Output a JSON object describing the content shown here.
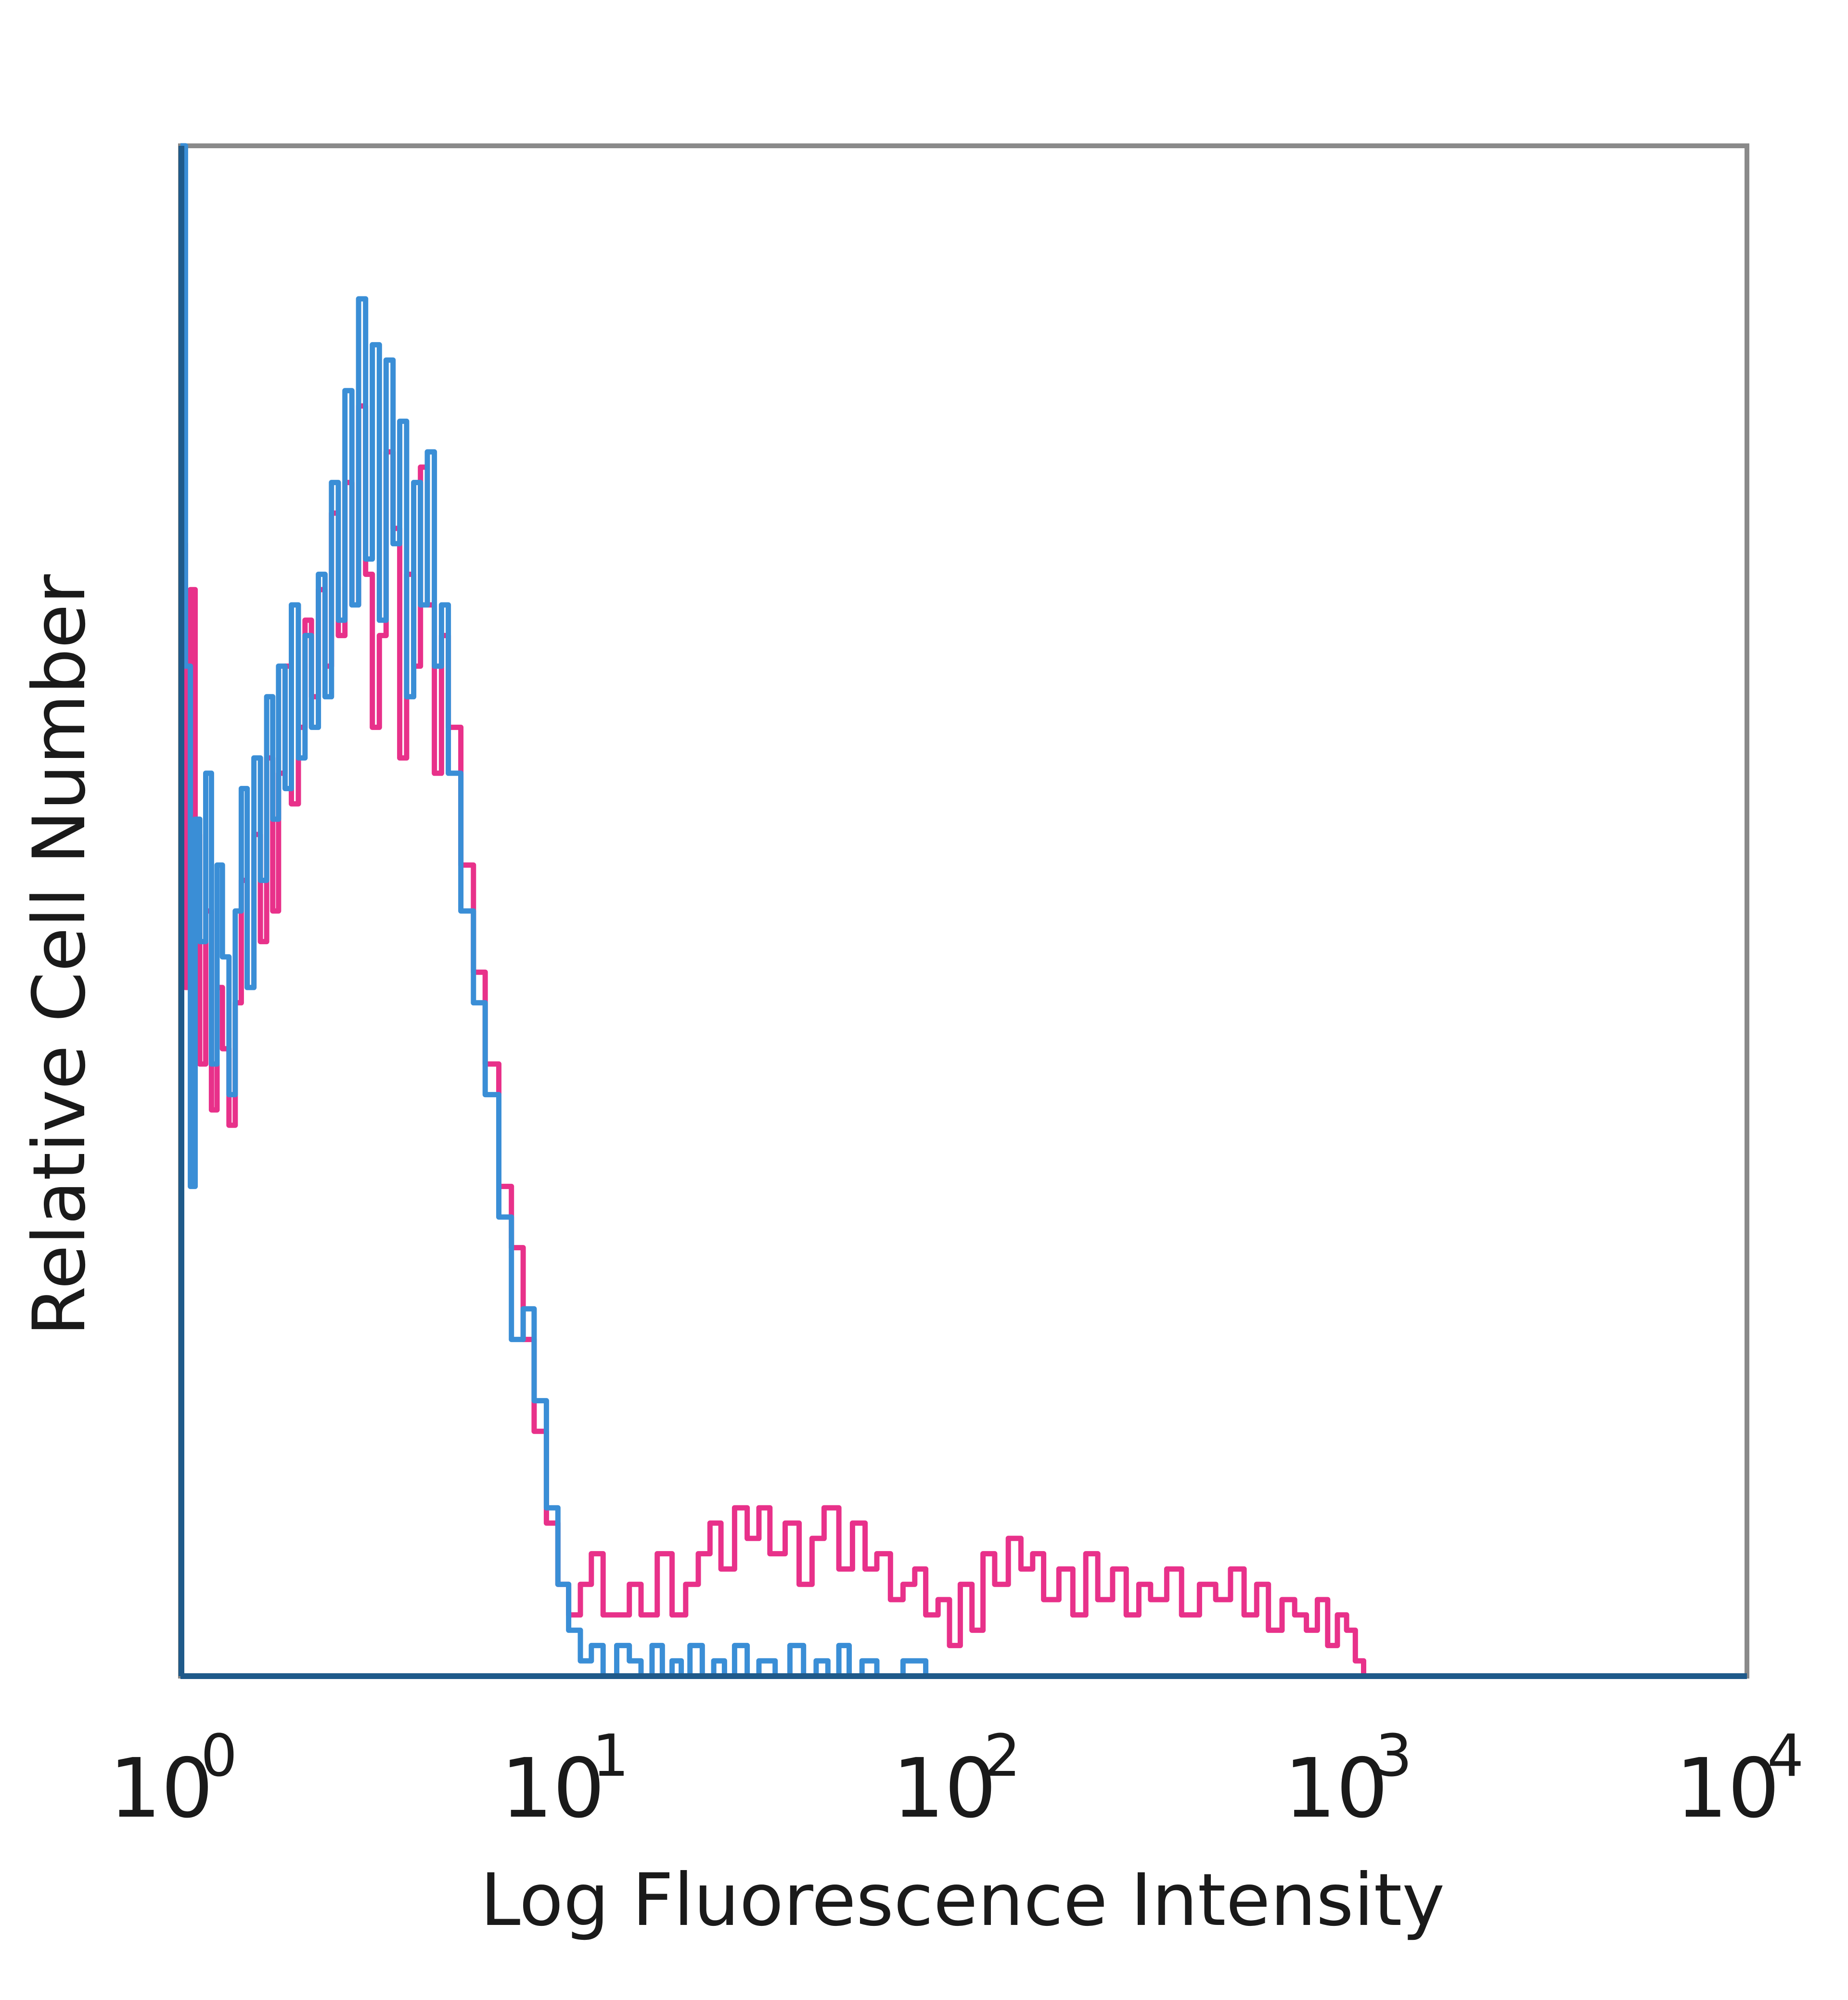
{
  "chart_data": {
    "type": "line",
    "xlabel": "Log Fluorescence Intensity",
    "ylabel": "Relative Cell Number",
    "x_scale": "log",
    "xlim": [
      1,
      10000
    ],
    "ylim": [
      0,
      100
    ],
    "grid": false,
    "x_ticks": [
      {
        "value": 1,
        "base": "10",
        "exp": "0"
      },
      {
        "value": 10,
        "base": "10",
        "exp": "1"
      },
      {
        "value": 100,
        "base": "10",
        "exp": "2"
      },
      {
        "value": 1000,
        "base": "10",
        "exp": "3"
      },
      {
        "value": 10000,
        "base": "10",
        "exp": "4"
      }
    ],
    "series": [
      {
        "color": "#e8318a",
        "x": [
          1.0,
          1.03,
          1.06,
          1.09,
          1.12,
          1.16,
          1.2,
          1.24,
          1.28,
          1.33,
          1.38,
          1.43,
          1.48,
          1.54,
          1.6,
          1.66,
          1.72,
          1.78,
          1.85,
          1.92,
          2.0,
          2.08,
          2.16,
          2.25,
          2.34,
          2.43,
          2.53,
          2.63,
          2.74,
          2.85,
          2.97,
          3.09,
          3.22,
          3.35,
          3.49,
          3.63,
          3.78,
          3.94,
          4.1,
          4.27,
          4.45,
          4.64,
          4.83,
          5.2,
          5.6,
          6.0,
          6.5,
          7.0,
          7.5,
          8.0,
          8.6,
          9.2,
          9.8,
          10.5,
          11.2,
          12.0,
          13.0,
          14.0,
          15.0,
          16.5,
          18.0,
          19.5,
          21.0,
          22.5,
          24.0,
          26.0,
          28.0,
          30.0,
          32.0,
          35.0,
          38.0,
          41.0,
          44.0,
          48.0,
          52.0,
          56.0,
          60.0,
          65.0,
          70.0,
          75.0,
          80.0,
          86.0,
          92.0,
          98.0,
          105.0,
          112.0,
          120.0,
          130.0,
          140.0,
          150.0,
          160.0,
          175.0,
          190.0,
          205.0,
          220.0,
          240.0,
          260.0,
          280.0,
          300.0,
          330.0,
          360.0,
          400.0,
          440.0,
          480.0,
          520.0,
          560.0,
          600.0,
          650.0,
          700.0,
          750.0,
          800.0,
          850.0,
          900.0,
          950.0,
          1000.0,
          1050.0
        ],
        "y": [
          74,
          45,
          71,
          55,
          40,
          50,
          37,
          45,
          41,
          36,
          44,
          52,
          45,
          55,
          48,
          60,
          50,
          59,
          66,
          57,
          62,
          69,
          64,
          71,
          66,
          76,
          68,
          78,
          70,
          83,
          72,
          62,
          68,
          80,
          75,
          60,
          72,
          66,
          79,
          70,
          59,
          68,
          62,
          53,
          46,
          40,
          32,
          28,
          22,
          16,
          10,
          6,
          4,
          6,
          8,
          4,
          4,
          6,
          4,
          8,
          4,
          6,
          8,
          10,
          7,
          11,
          9,
          11,
          8,
          10,
          6,
          9,
          11,
          7,
          10,
          7,
          8,
          5,
          6,
          7,
          4,
          5,
          2,
          6,
          3,
          8,
          6,
          9,
          7,
          8,
          5,
          7,
          4,
          8,
          5,
          7,
          4,
          6,
          5,
          7,
          4,
          6,
          5,
          7,
          4,
          6,
          3,
          5,
          4,
          3,
          5,
          2,
          4,
          3,
          1,
          0
        ]
      },
      {
        "color": "#3a8ed6",
        "x": [
          1.0,
          1.03,
          1.06,
          1.09,
          1.12,
          1.16,
          1.2,
          1.24,
          1.28,
          1.33,
          1.38,
          1.43,
          1.48,
          1.54,
          1.6,
          1.66,
          1.72,
          1.78,
          1.85,
          1.92,
          2.0,
          2.08,
          2.16,
          2.25,
          2.34,
          2.43,
          2.53,
          2.63,
          2.74,
          2.85,
          2.97,
          3.09,
          3.22,
          3.35,
          3.49,
          3.63,
          3.78,
          3.94,
          4.1,
          4.27,
          4.45,
          4.64,
          4.83,
          5.2,
          5.6,
          6.0,
          6.5,
          7.0,
          7.5,
          8.0,
          8.6,
          9.2,
          9.8,
          10.5,
          11.2,
          12.0,
          13.0,
          14.0,
          15.0,
          16.0,
          17.0,
          18.0,
          19.0,
          20.0,
          21.5,
          23.0,
          24.5,
          26.0,
          28.0,
          30.0,
          33.0,
          36.0,
          39.0,
          42.0,
          45.0,
          48.0,
          51.0,
          55.0,
          60.0,
          70.0,
          80.0,
          100.0,
          200.0,
          500.0,
          1000.0,
          2000.0,
          5000.0,
          10000.0
        ],
        "y": [
          100,
          66,
          32,
          56,
          48,
          59,
          40,
          53,
          47,
          38,
          50,
          58,
          45,
          60,
          52,
          64,
          56,
          66,
          58,
          70,
          60,
          68,
          62,
          72,
          64,
          78,
          69,
          84,
          70,
          90,
          73,
          87,
          69,
          86,
          74,
          82,
          64,
          78,
          70,
          80,
          66,
          70,
          59,
          50,
          44,
          38,
          30,
          22,
          24,
          18,
          11,
          6,
          3,
          1,
          2,
          0,
          2,
          1,
          0,
          2,
          0,
          1,
          0,
          2,
          0,
          1,
          0,
          2,
          0,
          1,
          0,
          2,
          0,
          1,
          0,
          2,
          0,
          1,
          0,
          1,
          0,
          0,
          0,
          0,
          0,
          0,
          0,
          0
        ]
      }
    ]
  }
}
